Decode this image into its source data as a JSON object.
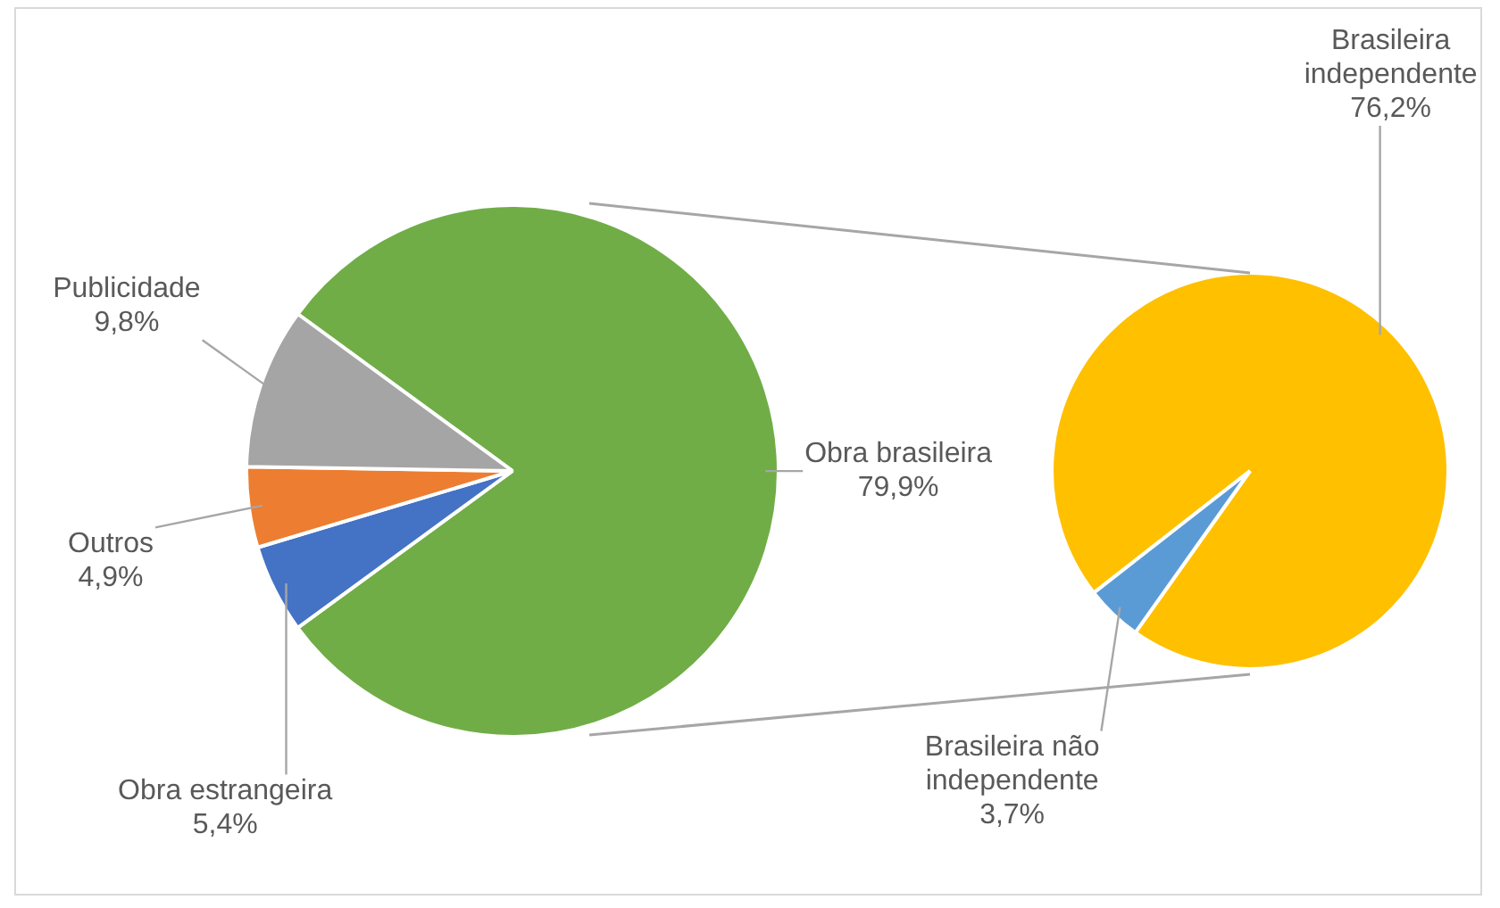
{
  "chart_data": [
    {
      "type": "pie",
      "categories": [
        "Obra brasileira",
        "Obra estrangeira",
        "Outros",
        "Publicidade"
      ],
      "values": [
        79.9,
        5.4,
        4.9,
        9.8
      ],
      "colors": [
        "#70ad47",
        "#4472c4",
        "#ed7d31",
        "#a5a5a5"
      ],
      "value_labels": [
        "79,9%",
        "5,4%",
        "4,9%",
        "9,8%"
      ],
      "legend": false
    },
    {
      "type": "pie",
      "categories": [
        "Brasileira independente",
        "Brasileira não independente"
      ],
      "values": [
        76.2,
        3.7
      ],
      "colors": [
        "#ffc000",
        "#5b9bd5"
      ],
      "value_labels": [
        "76,2%",
        "3,7%"
      ],
      "legend": false
    }
  ]
}
